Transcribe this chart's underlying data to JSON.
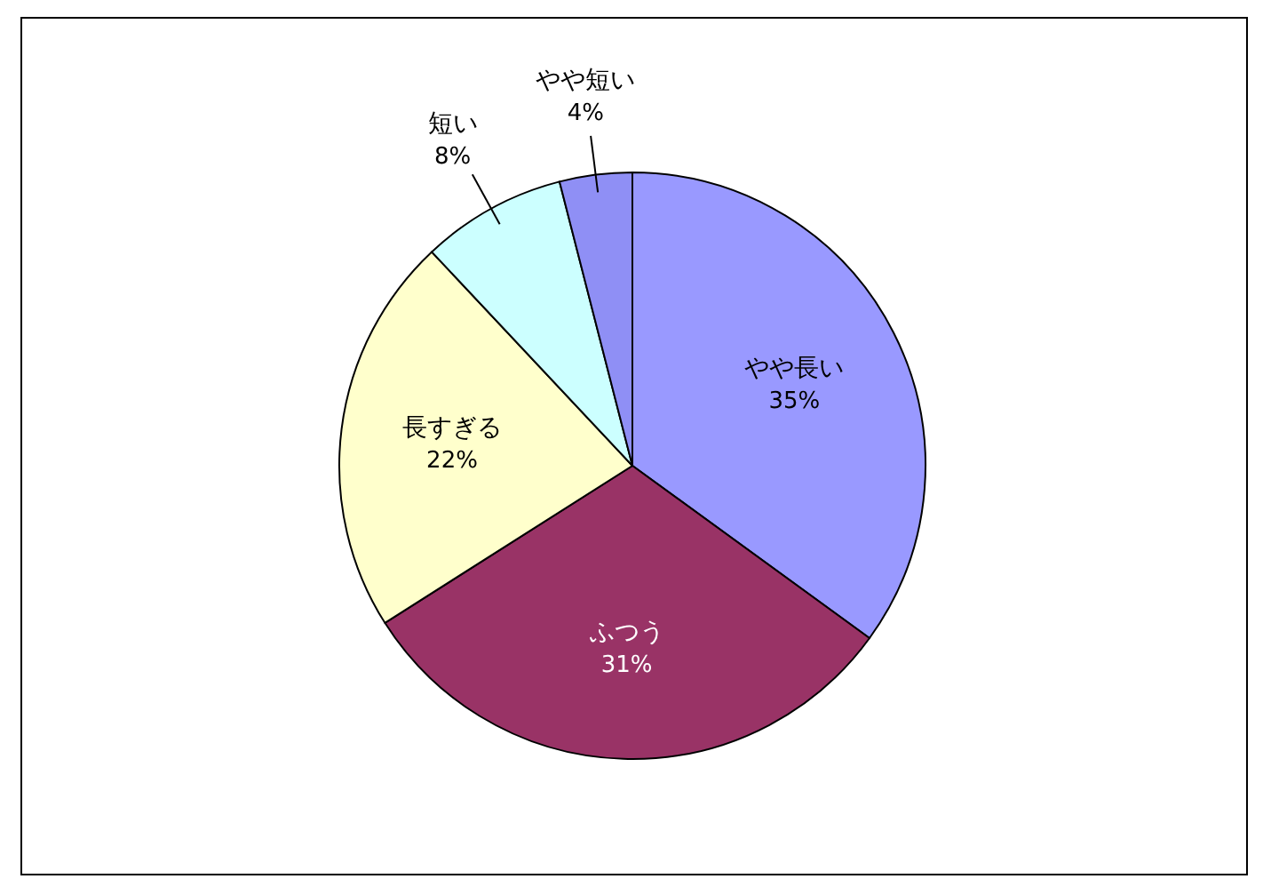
{
  "chart_data": {
    "type": "pie",
    "categories": [
      "やや長い",
      "ふつう",
      "長すぎる",
      "短い",
      "やや短い"
    ],
    "values": [
      35,
      31,
      22,
      8,
      4
    ],
    "colors": [
      "#9999ff",
      "#993366",
      "#ffffcc",
      "#ccffff",
      "#8f8ff5"
    ],
    "value_labels": [
      "35%",
      "31%",
      "22%",
      "8%",
      "4%"
    ]
  }
}
